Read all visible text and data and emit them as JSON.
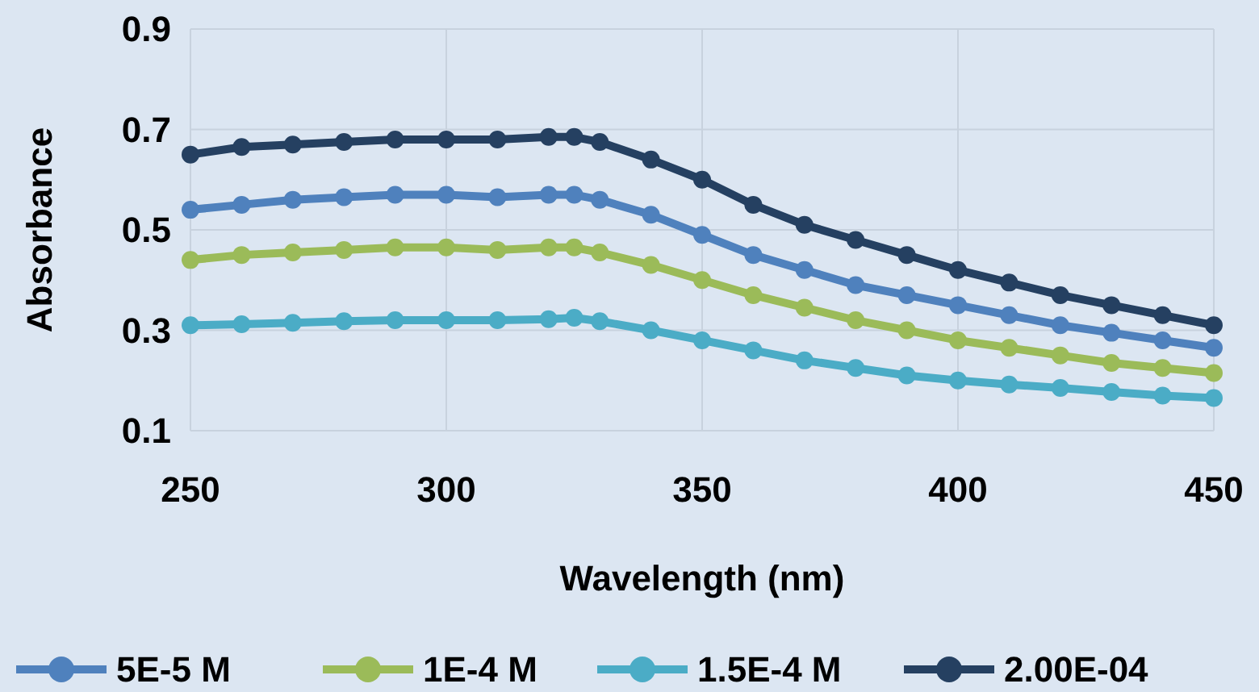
{
  "chart_data": {
    "type": "line",
    "xlabel": "Wavelength (nm)",
    "ylabel": "Absorbance",
    "x": [
      250,
      260,
      270,
      280,
      290,
      300,
      310,
      320,
      325,
      330,
      340,
      350,
      360,
      370,
      380,
      390,
      400,
      410,
      420,
      430,
      440,
      450
    ],
    "series": [
      {
        "name": "5E-5 M",
        "color": "#4f81bd",
        "values": [
          0.54,
          0.55,
          0.56,
          0.565,
          0.57,
          0.57,
          0.565,
          0.57,
          0.57,
          0.56,
          0.53,
          0.49,
          0.45,
          0.42,
          0.39,
          0.37,
          0.35,
          0.33,
          0.31,
          0.295,
          0.28,
          0.265
        ]
      },
      {
        "name": "1E-4 M",
        "color": "#9bbb59",
        "values": [
          0.44,
          0.45,
          0.455,
          0.46,
          0.465,
          0.465,
          0.46,
          0.465,
          0.465,
          0.455,
          0.43,
          0.4,
          0.37,
          0.345,
          0.32,
          0.3,
          0.28,
          0.265,
          0.25,
          0.235,
          0.225,
          0.215
        ]
      },
      {
        "name": "1.5E-4 M",
        "color": "#4bacc6",
        "values": [
          0.31,
          0.312,
          0.315,
          0.318,
          0.32,
          0.32,
          0.32,
          0.322,
          0.325,
          0.318,
          0.3,
          0.28,
          0.26,
          0.24,
          0.225,
          0.21,
          0.2,
          0.192,
          0.185,
          0.177,
          0.17,
          0.165
        ]
      },
      {
        "name": "2.00E-04",
        "color": "#254061",
        "values": [
          0.65,
          0.665,
          0.67,
          0.675,
          0.68,
          0.68,
          0.68,
          0.685,
          0.685,
          0.675,
          0.64,
          0.6,
          0.55,
          0.51,
          0.48,
          0.45,
          0.42,
          0.395,
          0.37,
          0.35,
          0.33,
          0.31
        ]
      }
    ],
    "xlim": [
      250,
      450
    ],
    "xticks": [
      250,
      300,
      350,
      400,
      450
    ],
    "ylim": [
      0.1,
      0.9
    ],
    "yticks": [
      0.1,
      0.3,
      0.5,
      0.7,
      0.9
    ],
    "grid": true,
    "legend": "bottom",
    "marker": "circle"
  }
}
